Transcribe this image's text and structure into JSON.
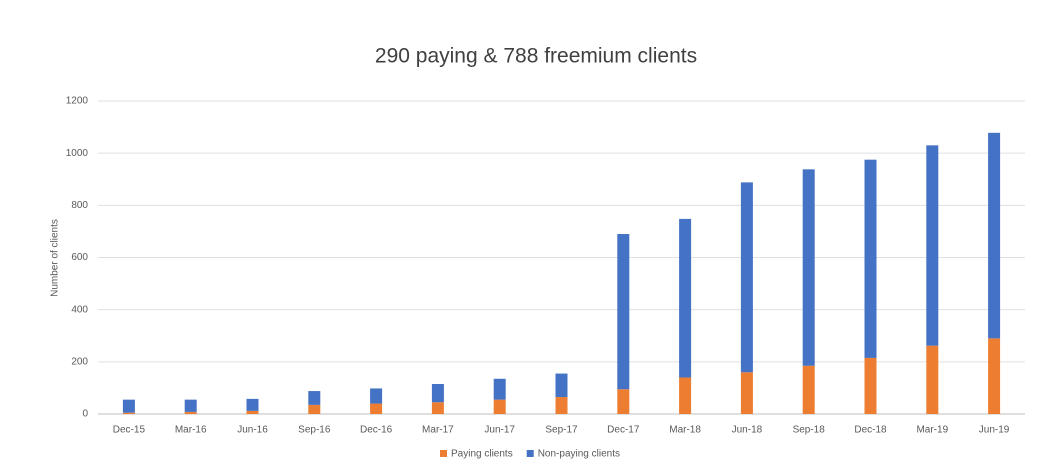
{
  "chart_data": {
    "type": "stacked_bar",
    "title": "290 paying & 788 freemium clients",
    "y_label": "Number of clients",
    "categories": [
      "Dec-15",
      "Mar-16",
      "Jun-16",
      "Sep-16",
      "Dec-16",
      "Mar-17",
      "Jun-17",
      "Sep-17",
      "Dec-17",
      "Mar-18",
      "Jun-18",
      "Sep-18",
      "Dec-18",
      "Mar-19",
      "Jun-19"
    ],
    "series": [
      {
        "name": "Paying clients",
        "color": "#ed7d31",
        "values": [
          5,
          8,
          12,
          35,
          40,
          45,
          55,
          65,
          95,
          140,
          160,
          185,
          215,
          262,
          290
        ]
      },
      {
        "name": "Non-paying clients",
        "color": "#4472c4",
        "values": [
          50,
          47,
          46,
          53,
          58,
          70,
          80,
          90,
          595,
          608,
          728,
          753,
          760,
          768,
          788
        ]
      }
    ],
    "ylim": [
      0,
      1200
    ],
    "yticks": [
      0,
      200,
      400,
      600,
      800,
      1000,
      1200
    ],
    "grid": true,
    "legend": "bottom"
  }
}
